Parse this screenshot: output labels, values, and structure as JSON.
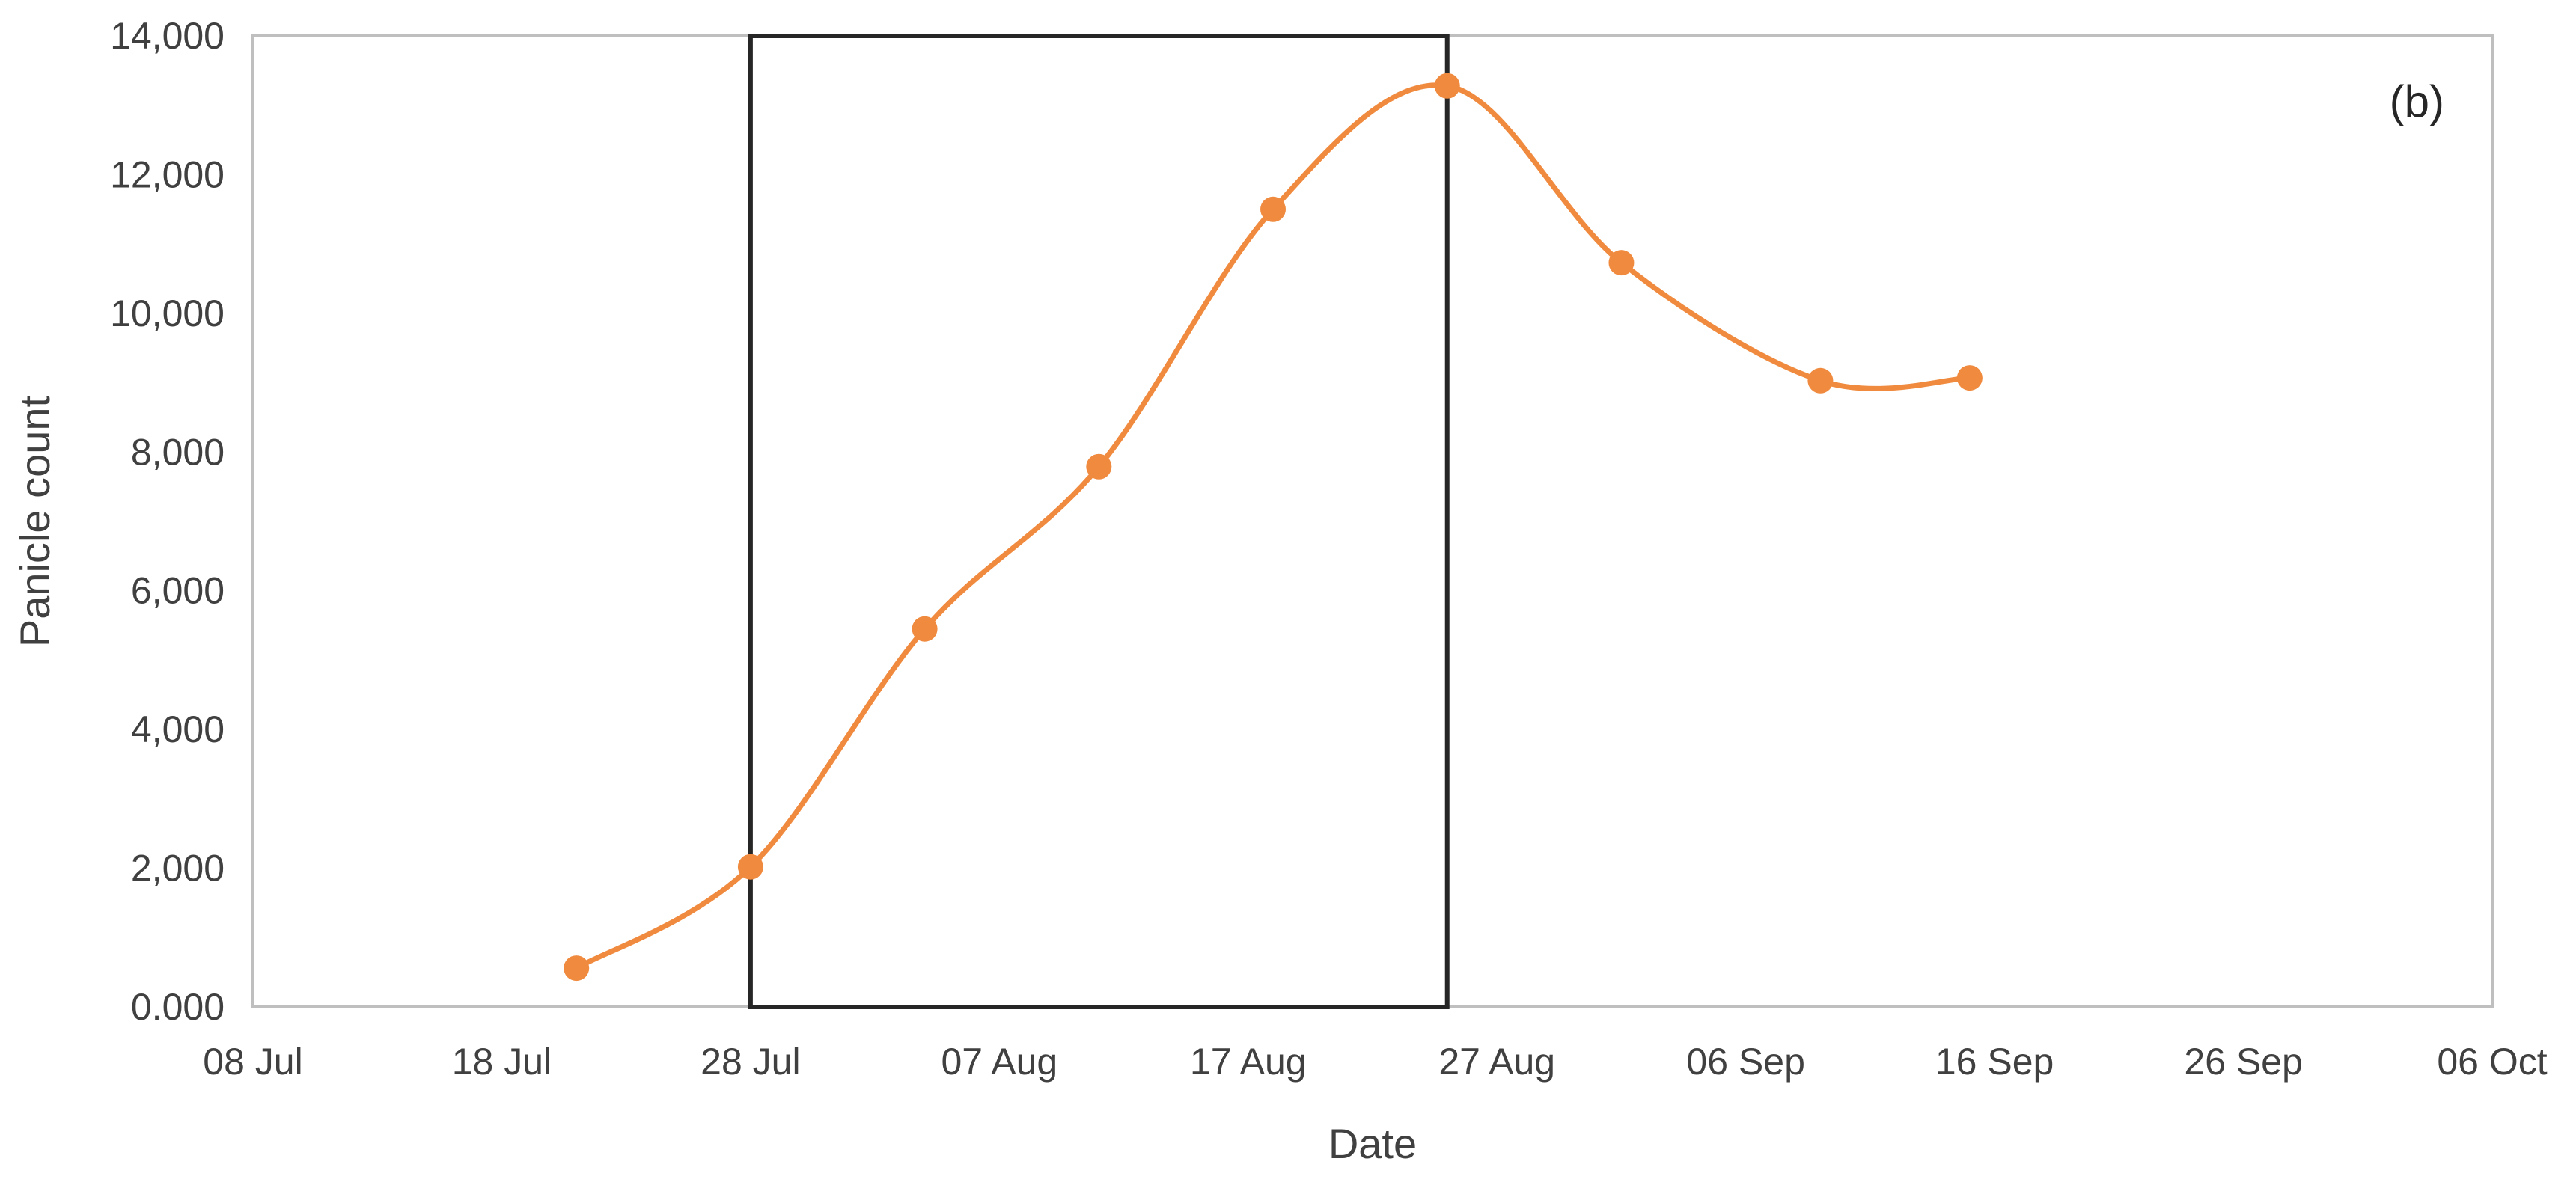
{
  "chart_data": {
    "type": "line",
    "smooth": true,
    "markers": true,
    "xlabel": "Date",
    "ylabel": "Panicle count",
    "annotation": "(b)",
    "xlim": [
      "2024-07-08",
      "2024-10-06"
    ],
    "ylim": [
      0,
      14000
    ],
    "grid": false,
    "x_ticks": [
      "08 Jul",
      "18 Jul",
      "28 Jul",
      "07 Aug",
      "17 Aug",
      "27 Aug",
      "06 Sep",
      "16 Sep",
      "26 Sep",
      "06 Oct"
    ],
    "y_ticks": [
      "0.000",
      "2,000",
      "4,000",
      "6,000",
      "8,000",
      "10,000",
      "12,000",
      "14,000"
    ],
    "series": [
      {
        "color": "#f08a3e",
        "x": [
          "2024-07-21",
          "2024-07-28",
          "2024-08-04",
          "2024-08-11",
          "2024-08-18",
          "2024-08-25",
          "2024-09-01",
          "2024-09-09",
          "2024-09-15"
        ],
        "y": [
          560,
          2020,
          5450,
          7790,
          11500,
          13280,
          10730,
          9030,
          9070
        ]
      }
    ],
    "highlight_range": [
      "2024-07-28",
      "2024-08-25"
    ],
    "colors": {
      "axis": "#bfbfbf",
      "highlight_box": "#262626",
      "text": "#404040"
    }
  }
}
